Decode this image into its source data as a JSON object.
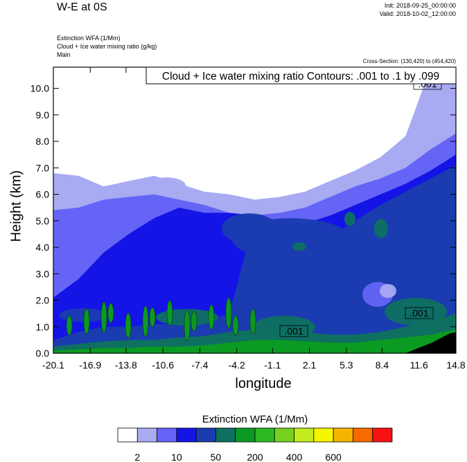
{
  "header": {
    "title": "W-E at 0S",
    "init": "Init: 2018-09-25_00:00:00",
    "valid": "Valid: 2018-10-02_12:00:00",
    "fields": [
      "Extinction WFA   (1/Mm)",
      "Cloud + Ice water mixing ratio   (g/kg)",
      "Main"
    ],
    "cross_section": "Cross-Section: (130,420) to (454,420)"
  },
  "chart_data": {
    "type": "heatmap",
    "title": "W-E at 0S",
    "xlabel": "longitude",
    "ylabel": "Height (km)",
    "x_ticks": [
      "-20.1",
      "-16.9",
      "-13.8",
      "-10.6",
      "-7.4",
      "-4.2",
      "-1.1",
      "2.1",
      "5.3",
      "8.4",
      "11.6",
      "14.8"
    ],
    "y_ticks": [
      "0.0",
      "1.0",
      "2.0",
      "3.0",
      "4.0",
      "5.0",
      "6.0",
      "7.0",
      "8.0",
      "9.0",
      "10.0"
    ],
    "xlim": [
      -20.1,
      14.8
    ],
    "ylim": [
      0,
      10.8
    ],
    "contour_label": "Cloud + Ice water mixing ratio Contours: .001 to .1 by .099",
    "contour_value_labels": [
      ".001",
      ".001",
      ".001"
    ],
    "colorbar": {
      "title": "Extinction WFA  (1/Mm)",
      "colors": [
        "#ffffff",
        "#a8aaf2",
        "#6464f6",
        "#1414e6",
        "#1a3cb0",
        "#0e7060",
        "#0b9a22",
        "#2cb822",
        "#78d01e",
        "#c2ec1e",
        "#f6f600",
        "#f6b400",
        "#f66a00",
        "#f61212"
      ],
      "labels": [
        "2",
        "10",
        "50",
        "200",
        "400",
        "600"
      ]
    },
    "layers": [
      {
        "color": "#a8aaf2",
        "top_km": [
          6.8,
          6.7,
          6.3,
          6.5,
          6.7,
          6.4,
          6.1,
          6.0,
          5.8,
          5.9,
          6.1,
          6.5,
          6.9,
          7.4,
          8.2,
          10.8,
          10.8
        ]
      },
      {
        "color": "#6464f6",
        "top_km": [
          5.4,
          5.5,
          5.8,
          5.9,
          6.0,
          5.8,
          5.6,
          5.3,
          5.2,
          5.3,
          5.5,
          5.9,
          6.3,
          6.6,
          7.0,
          7.7,
          8.3
        ]
      },
      {
        "color": "#1414e6",
        "top_km": [
          2.1,
          2.8,
          3.8,
          4.5,
          5.1,
          5.5,
          5.3,
          5.3,
          5.2,
          5.0,
          4.9,
          5.2,
          5.6,
          6.0,
          6.4,
          6.9,
          7.5
        ]
      },
      {
        "color": "#1a3cb0",
        "top_km": [
          0.5,
          0.8,
          1.0,
          1.0,
          1.1,
          1.1,
          1.2,
          1.5,
          5.1,
          5.0,
          4.6,
          4.4,
          5.0,
          5.6,
          6.1,
          6.6,
          7.1
        ]
      },
      {
        "color": "#0e7060",
        "top_km": [
          0.25,
          0.35,
          0.45,
          0.5,
          0.5,
          0.6,
          0.65,
          0.8,
          0.9,
          0.85,
          0.8,
          0.7,
          0.7,
          0.8,
          1.0,
          1.2,
          1.5
        ]
      },
      {
        "color": "#0b9a22",
        "top_km": [
          0.1,
          0.15,
          0.2,
          0.2,
          0.25,
          0.25,
          0.3,
          0.4,
          0.5,
          0.5,
          0.45,
          0.4,
          0.4,
          0.5,
          0.6,
          0.7,
          0.9
        ]
      }
    ]
  }
}
